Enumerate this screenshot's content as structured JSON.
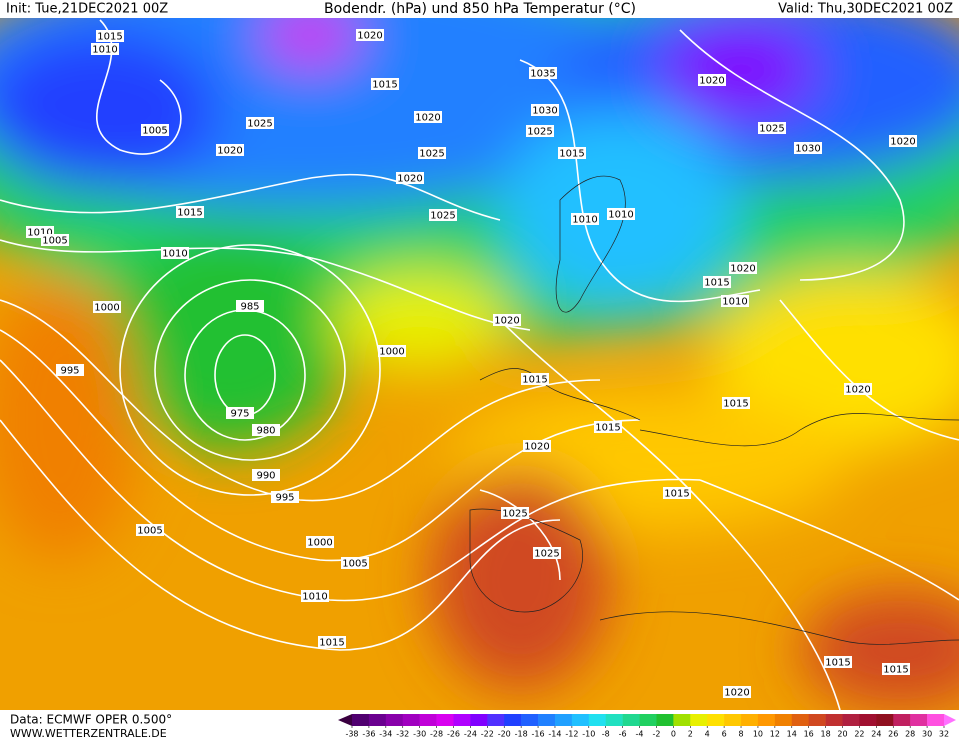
{
  "header": {
    "init": "Init: Tue,21DEC2021 00Z",
    "title": "Bodendr. (hPa) und 850 hPa Temperatur (°C)",
    "valid": "Valid: Thu,30DEC2021 00Z"
  },
  "isobar_labels": [
    "1015",
    "1010",
    "1005",
    "1020",
    "1025",
    "1015",
    "1010",
    "1010",
    "1005",
    "1000",
    "995",
    "985",
    "975",
    "980",
    "990",
    "995",
    "1005",
    "1000",
    "1005",
    "1010",
    "1015",
    "1000",
    "1020",
    "1015",
    "1020",
    "1015",
    "1015",
    "1025",
    "1025",
    "1020",
    "1015",
    "1015",
    "1020",
    "1015",
    "1010",
    "1015",
    "1020",
    "1010",
    "1010",
    "1025",
    "1015",
    "1025",
    "1030",
    "1035",
    "1020",
    "1025",
    "1030",
    "1020",
    "1020",
    "1015",
    "1020",
    "1025",
    "1020"
  ],
  "footer": {
    "data": "Data: ECMWF OPER 0.500°",
    "site": "WWW.WETTERZENTRALE.DE"
  },
  "colorbar": {
    "ticks": [
      -38,
      -36,
      -34,
      -32,
      -30,
      -28,
      -26,
      -24,
      -22,
      -20,
      -18,
      -16,
      -14,
      -12,
      -10,
      -8,
      -6,
      -4,
      -2,
      0,
      2,
      4,
      6,
      8,
      10,
      12,
      14,
      16,
      18,
      20,
      22,
      24,
      26,
      28,
      30,
      32
    ],
    "colors": [
      "#3a0040",
      "#500070",
      "#6a0090",
      "#8800aa",
      "#a000c0",
      "#c000d8",
      "#d800f0",
      "#b000ff",
      "#8000ff",
      "#5030ff",
      "#2040ff",
      "#2060ff",
      "#2080ff",
      "#20a0ff",
      "#20c0ff",
      "#20e0f0",
      "#20e0c0",
      "#20d890",
      "#20d060",
      "#20c030",
      "#a0e000",
      "#e8f000",
      "#ffe000",
      "#ffc800",
      "#ffb000",
      "#ff9800",
      "#f08000",
      "#e06010",
      "#d04820",
      "#c03030",
      "#b02040",
      "#a01030",
      "#901020",
      "#c02060",
      "#e030a0",
      "#ff50e0",
      "#ff70ff"
    ]
  }
}
